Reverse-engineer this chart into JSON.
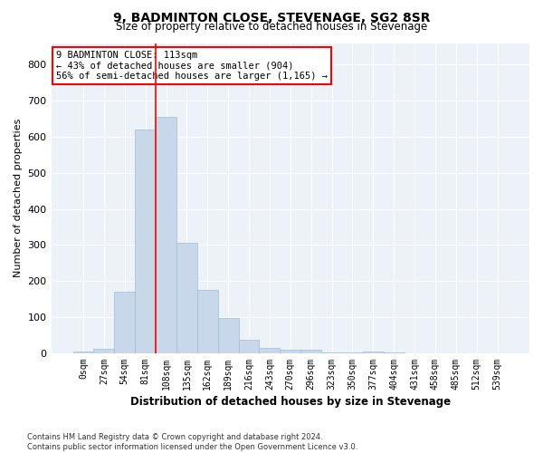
{
  "title": "9, BADMINTON CLOSE, STEVENAGE, SG2 8SR",
  "subtitle": "Size of property relative to detached houses in Stevenage",
  "xlabel": "Distribution of detached houses by size in Stevenage",
  "ylabel": "Number of detached properties",
  "bar_color": "#c8d8ea",
  "bar_edge_color": "#a0bcd4",
  "background_color": "#edf1f8",
  "grid_color": "#ffffff",
  "categories": [
    "0sqm",
    "27sqm",
    "54sqm",
    "81sqm",
    "108sqm",
    "135sqm",
    "162sqm",
    "189sqm",
    "216sqm",
    "243sqm",
    "270sqm",
    "296sqm",
    "323sqm",
    "350sqm",
    "377sqm",
    "404sqm",
    "431sqm",
    "458sqm",
    "485sqm",
    "512sqm",
    "539sqm"
  ],
  "values": [
    5,
    13,
    170,
    620,
    655,
    305,
    175,
    98,
    38,
    14,
    10,
    10,
    2,
    2,
    5,
    2,
    0,
    0,
    0,
    0,
    0
  ],
  "ylim": [
    0,
    860
  ],
  "yticks": [
    0,
    100,
    200,
    300,
    400,
    500,
    600,
    700,
    800
  ],
  "property_line_bin": 4,
  "property_label": "9 BADMINTON CLOSE: 113sqm",
  "annotation_line1": "← 43% of detached houses are smaller (904)",
  "annotation_line2": "56% of semi-detached houses are larger (1,165) →",
  "footer_line1": "Contains HM Land Registry data © Crown copyright and database right 2024.",
  "footer_line2": "Contains public sector information licensed under the Open Government Licence v3.0."
}
